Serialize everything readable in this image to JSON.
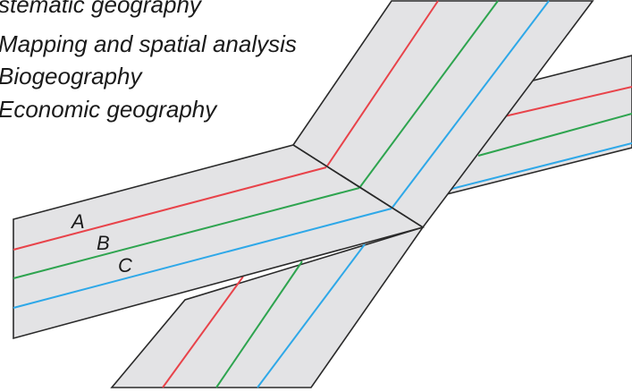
{
  "heading": "stematic geography",
  "items": [
    "Mapping and spatial analysis",
    "Biogeography",
    "Economic geography"
  ],
  "band_labels": [
    "A",
    "B",
    "C"
  ],
  "colors": {
    "A": "#e8434a",
    "B": "#2ea44f",
    "C": "#2ea8e8",
    "band": "#e3e3e5",
    "outline": "#2a2a2a"
  }
}
